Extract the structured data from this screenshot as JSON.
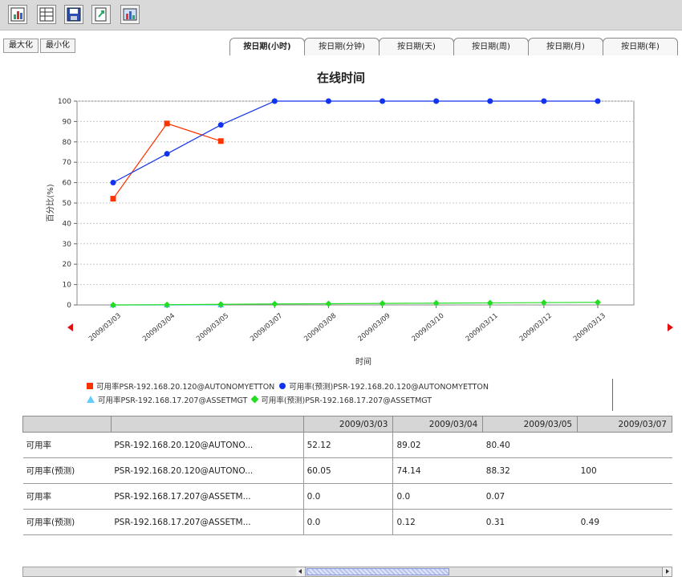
{
  "toolbar": {
    "icons": [
      "chart-icon",
      "table-icon",
      "save-icon",
      "export-icon",
      "image-icon"
    ]
  },
  "view_buttons": [
    "最大化",
    "最小化"
  ],
  "tabs": [
    "按日期(小时)",
    "按日期(分钟)",
    "按日期(天)",
    "按日期(周)",
    "按日期(月)",
    "按日期(年)"
  ],
  "active_tab": 0,
  "chart_data": {
    "type": "line",
    "title": "在线时间",
    "xlabel": "时间",
    "ylabel": "百分比(%)",
    "ylim": [
      0,
      100
    ],
    "yticks": [
      0,
      10,
      20,
      30,
      40,
      50,
      60,
      70,
      80,
      90,
      100
    ],
    "categories": [
      "2009/03/03",
      "2009/03/04",
      "2009/03/05",
      "2009/03/07",
      "2009/03/08",
      "2009/03/09",
      "2009/03/10",
      "2009/03/11",
      "2009/03/12",
      "2009/03/13"
    ],
    "grid": true,
    "legend_position": "bottom",
    "series": [
      {
        "name": "可用率PSR-192.168.20.120@AUTONOMYETTON",
        "color": "#ff3300",
        "marker": "square",
        "values": [
          52.12,
          89.02,
          80.4,
          null,
          null,
          null,
          null,
          null,
          null,
          null
        ]
      },
      {
        "name": "可用率(预测)PSR-192.168.20.120@AUTONOMYETTON",
        "color": "#1133ee",
        "marker": "circle",
        "values": [
          60.05,
          74.14,
          88.32,
          100,
          100,
          100,
          100,
          100,
          100,
          100
        ]
      },
      {
        "name": "可用率PSR-192.168.17.207@ASSETMGT",
        "color": "#44bbee",
        "marker": "triangle",
        "values": [
          0.0,
          0.0,
          0.07,
          null,
          null,
          null,
          null,
          null,
          null,
          null
        ]
      },
      {
        "name": "可用率(预测)PSR-192.168.17.207@ASSETMGT",
        "color": "#22dd22",
        "marker": "diamond",
        "values": [
          0.0,
          0.12,
          0.31,
          0.49,
          0.6,
          0.75,
          0.9,
          1.0,
          1.15,
          1.3
        ]
      }
    ]
  },
  "table": {
    "columns": [
      "",
      "",
      "2009/03/03",
      "2009/03/04",
      "2009/03/05",
      "2009/03/07"
    ],
    "rows": [
      [
        "可用率",
        "PSR-192.168.20.120@AUTONO...",
        "52.12",
        "89.02",
        "80.40",
        ""
      ],
      [
        "可用率(预测)",
        "PSR-192.168.20.120@AUTONO...",
        "60.05",
        "74.14",
        "88.32",
        "100"
      ],
      [
        "可用率",
        "PSR-192.168.17.207@ASSETM...",
        "0.0",
        "0.0",
        "0.07",
        ""
      ],
      [
        "可用率(预测)",
        "PSR-192.168.17.207@ASSETM...",
        "0.0",
        "0.12",
        "0.31",
        "0.49"
      ]
    ]
  }
}
